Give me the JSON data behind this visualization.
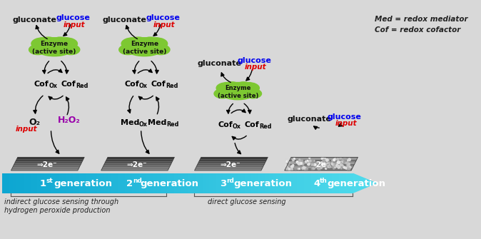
{
  "bg_color": "#d8d8d8",
  "enzyme_color": "#7dc832",
  "gen_bar_color_light": "#29bde0",
  "gen_bar_color_dark": "#0099bb",
  "note_lines": [
    "Med = redox mediator",
    "Cof = redox cofactor"
  ],
  "label_indirect": "indirect glucose sensing through\nhydrogen peroxide production",
  "label_direct": "direct glucose sensing",
  "gen_labels": [
    "1",
    "2",
    "3",
    "4"
  ],
  "gen_sups": [
    "st",
    "nd",
    "rd",
    "th"
  ],
  "text_black": "#111111",
  "text_blue": "#0000ee",
  "text_red": "#dd0000",
  "text_purple": "#9900aa",
  "text_white": "#ffffff"
}
